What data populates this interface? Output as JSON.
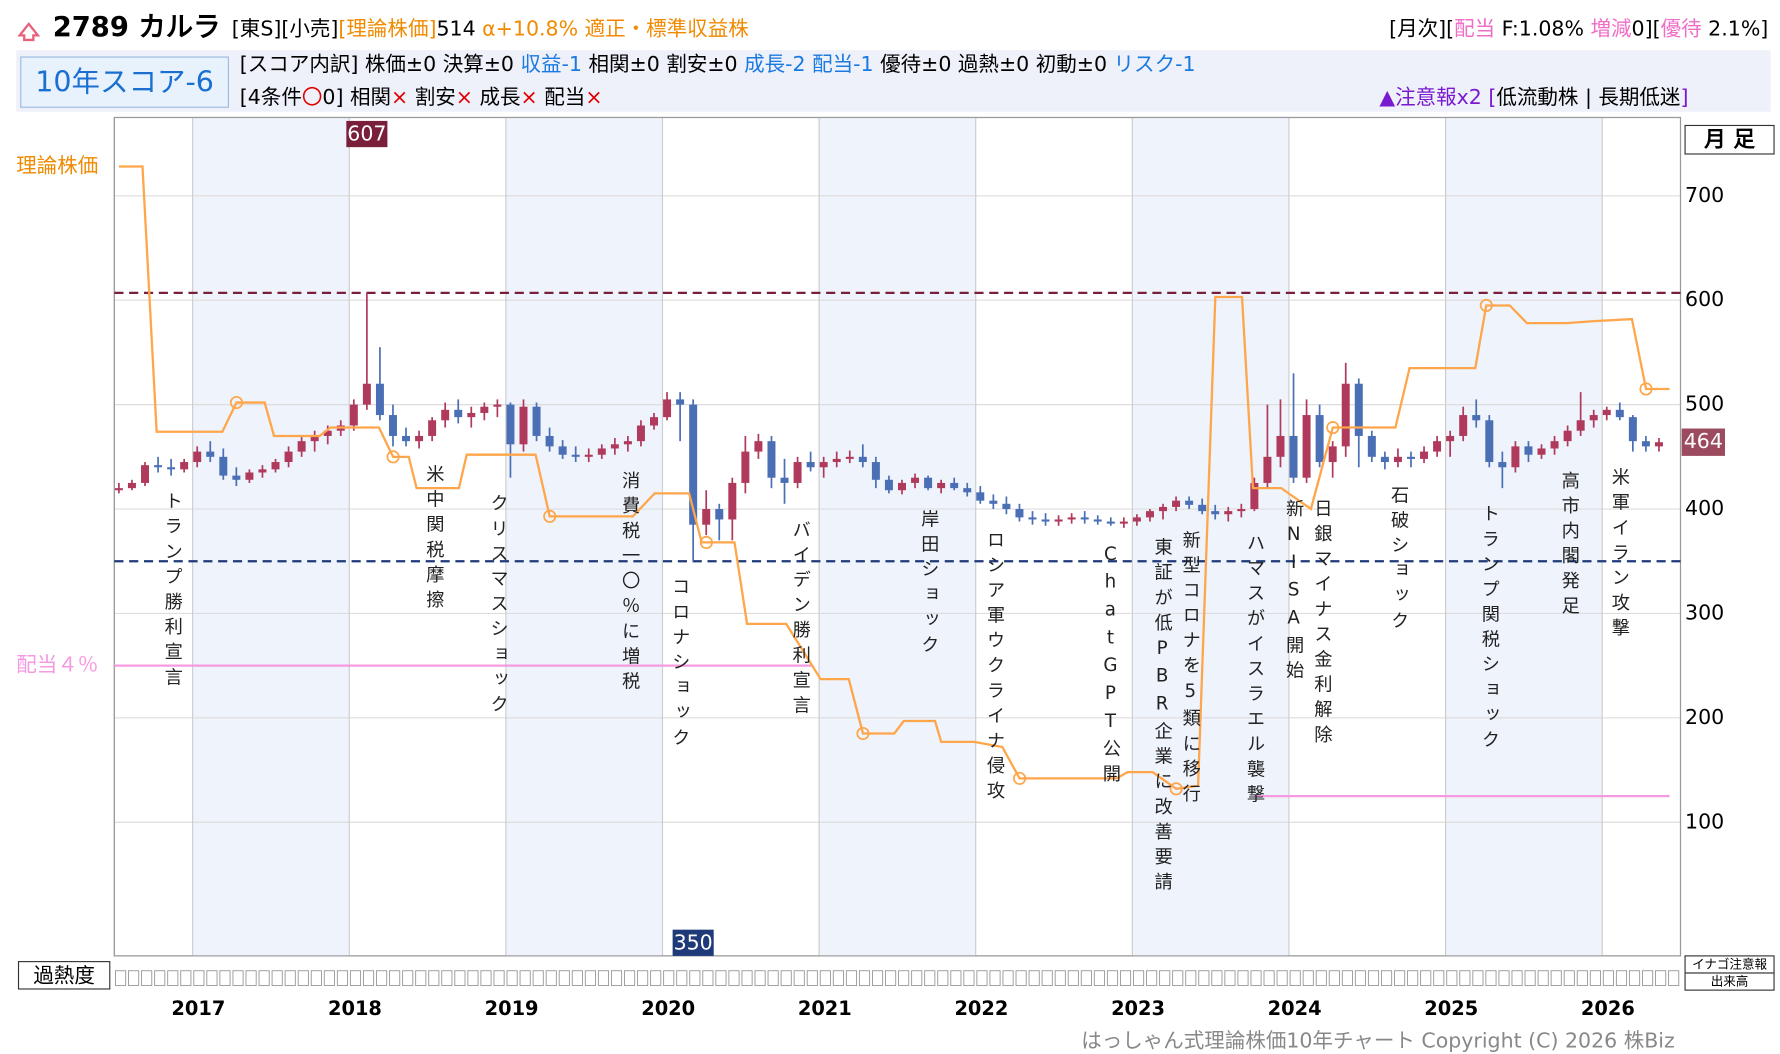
{
  "header": {
    "title": "2789 カルラ",
    "left": [
      {
        "text": "[東S][小売]",
        "color": "#000000"
      },
      {
        "text": "[理論株価]",
        "color": "#f08a00"
      },
      {
        "text": "514",
        "color": "#000000"
      },
      {
        "text": " α+10.8%",
        "color": "#f08a00"
      },
      {
        "text": " 適正・標準収益株",
        "color": "#f08a00"
      }
    ],
    "right": [
      {
        "text": "[月次][",
        "color": "#000000"
      },
      {
        "text": "配当",
        "color": "#f06ec8"
      },
      {
        "text": " F:1.08% ",
        "color": "#000000"
      },
      {
        "text": "増減",
        "color": "#f06ec8"
      },
      {
        "text": "0][",
        "color": "#000000"
      },
      {
        "text": "優待",
        "color": "#f06ec8"
      },
      {
        "text": " 2.1%]",
        "color": "#000000"
      }
    ],
    "score": "10年スコア-6",
    "breakdown": [
      {
        "text": "[スコア内訳] 株価±0 決算±0 ",
        "color": "#000000"
      },
      {
        "text": "収益-1",
        "color": "#1a7ae0"
      },
      {
        "text": " 相関±0 割安±0 ",
        "color": "#000000"
      },
      {
        "text": "成長-2 配当-1",
        "color": "#1a7ae0"
      },
      {
        "text": " 優待±0 過熱±0 初動±0 ",
        "color": "#000000"
      },
      {
        "text": "リスク-1",
        "color": "#1a7ae0"
      }
    ],
    "conditions": [
      {
        "text": "[4条件",
        "color": "#000000"
      },
      {
        "text": "〇",
        "color": "#e00000"
      },
      {
        "text": "0] 相関",
        "color": "#000000"
      },
      {
        "text": "×",
        "color": "#e00000"
      },
      {
        "text": " 割安",
        "color": "#000000"
      },
      {
        "text": "×",
        "color": "#e00000"
      },
      {
        "text": " 成長",
        "color": "#000000"
      },
      {
        "text": "×",
        "color": "#e00000"
      },
      {
        "text": " 配当",
        "color": "#000000"
      },
      {
        "text": "×",
        "color": "#e00000"
      }
    ],
    "warning": [
      {
        "text": "▲注意報x2 [",
        "color": "#7a1ad0"
      },
      {
        "text": "低流動株 | 長期低迷",
        "color": "#000000"
      },
      {
        "text": "]",
        "color": "#7a1ad0"
      }
    ]
  },
  "chart_data": {
    "type": "candlestick",
    "period": "月 足",
    "overheat_label": "過熱度",
    "inago_label": "イナゴ注意報",
    "volume_label": "出来高",
    "footer": "はっしゃん式理論株価10年チャート Copyright (C) 2026 株Biz",
    "xlim": [
      2016.5,
      2026.5
    ],
    "xticks": [
      2017,
      2018,
      2019,
      2020,
      2021,
      2022,
      2023,
      2024,
      2025,
      2026
    ],
    "ylim": [
      -28,
      775
    ],
    "yticks": [
      100,
      200,
      300,
      400,
      500,
      600,
      700
    ],
    "up_color": "#b03a5b",
    "down_color": "#4a6fb5",
    "ohlc": [
      [
        418,
        425,
        415,
        420
      ],
      [
        420,
        428,
        418,
        425
      ],
      [
        425,
        445,
        422,
        442
      ],
      [
        442,
        450,
        435,
        440
      ],
      [
        440,
        448,
        432,
        438
      ],
      [
        438,
        448,
        435,
        445
      ],
      [
        445,
        460,
        440,
        455
      ],
      [
        455,
        465,
        445,
        450
      ],
      [
        450,
        458,
        428,
        432
      ],
      [
        432,
        440,
        422,
        428
      ],
      [
        428,
        438,
        425,
        435
      ],
      [
        435,
        442,
        430,
        438
      ],
      [
        438,
        448,
        435,
        445
      ],
      [
        445,
        460,
        440,
        455
      ],
      [
        455,
        470,
        450,
        465
      ],
      [
        465,
        475,
        455,
        470
      ],
      [
        470,
        480,
        462,
        475
      ],
      [
        475,
        485,
        470,
        480
      ],
      [
        480,
        505,
        475,
        500
      ],
      [
        500,
        607,
        495,
        520
      ],
      [
        520,
        555,
        485,
        490
      ],
      [
        490,
        500,
        460,
        470
      ],
      [
        470,
        478,
        460,
        465
      ],
      [
        465,
        475,
        458,
        470
      ],
      [
        470,
        488,
        465,
        485
      ],
      [
        485,
        502,
        478,
        495
      ],
      [
        495,
        505,
        482,
        488
      ],
      [
        488,
        498,
        478,
        492
      ],
      [
        492,
        502,
        485,
        498
      ],
      [
        498,
        505,
        488,
        500
      ],
      [
        500,
        502,
        430,
        462
      ],
      [
        462,
        505,
        455,
        498
      ],
      [
        498,
        502,
        465,
        470
      ],
      [
        470,
        478,
        455,
        460
      ],
      [
        460,
        466,
        448,
        452
      ],
      [
        452,
        460,
        445,
        450
      ],
      [
        450,
        458,
        445,
        452
      ],
      [
        452,
        462,
        448,
        458
      ],
      [
        458,
        468,
        452,
        462
      ],
      [
        462,
        470,
        455,
        465
      ],
      [
        465,
        485,
        460,
        480
      ],
      [
        480,
        492,
        476,
        488
      ],
      [
        488,
        512,
        485,
        505
      ],
      [
        505,
        512,
        465,
        500
      ],
      [
        500,
        505,
        350,
        385
      ],
      [
        385,
        418,
        375,
        400
      ],
      [
        400,
        405,
        370,
        390
      ],
      [
        390,
        430,
        370,
        425
      ],
      [
        425,
        470,
        415,
        455
      ],
      [
        455,
        472,
        448,
        465
      ],
      [
        465,
        470,
        420,
        430
      ],
      [
        430,
        448,
        405,
        425
      ],
      [
        425,
        450,
        420,
        445
      ],
      [
        445,
        455,
        436,
        440
      ],
      [
        440,
        450,
        430,
        445
      ],
      [
        445,
        455,
        440,
        448
      ],
      [
        448,
        456,
        444,
        450
      ],
      [
        450,
        462,
        440,
        445
      ],
      [
        445,
        450,
        420,
        428
      ],
      [
        428,
        432,
        415,
        418
      ],
      [
        418,
        428,
        414,
        425
      ],
      [
        425,
        434,
        420,
        430
      ],
      [
        430,
        432,
        418,
        420
      ],
      [
        420,
        428,
        415,
        425
      ],
      [
        425,
        430,
        418,
        420
      ],
      [
        420,
        425,
        412,
        416
      ],
      [
        416,
        422,
        405,
        408
      ],
      [
        408,
        414,
        400,
        405
      ],
      [
        405,
        412,
        395,
        400
      ],
      [
        400,
        405,
        388,
        392
      ],
      [
        392,
        398,
        385,
        390
      ],
      [
        390,
        396,
        384,
        388
      ],
      [
        388,
        394,
        384,
        390
      ],
      [
        390,
        396,
        386,
        392
      ],
      [
        392,
        398,
        386,
        390
      ],
      [
        390,
        394,
        385,
        388
      ],
      [
        388,
        392,
        384,
        386
      ],
      [
        386,
        392,
        382,
        388
      ],
      [
        388,
        395,
        384,
        392
      ],
      [
        392,
        400,
        388,
        398
      ],
      [
        398,
        405,
        390,
        402
      ],
      [
        402,
        412,
        398,
        408
      ],
      [
        408,
        412,
        400,
        404
      ],
      [
        404,
        410,
        395,
        398
      ],
      [
        398,
        404,
        390,
        395
      ],
      [
        395,
        402,
        388,
        398
      ],
      [
        398,
        405,
        392,
        400
      ],
      [
        400,
        430,
        398,
        425
      ],
      [
        425,
        500,
        420,
        450
      ],
      [
        450,
        505,
        440,
        470
      ],
      [
        470,
        530,
        425,
        430
      ],
      [
        430,
        505,
        425,
        490
      ],
      [
        490,
        500,
        440,
        445
      ],
      [
        445,
        465,
        430,
        460
      ],
      [
        460,
        540,
        450,
        520
      ],
      [
        520,
        525,
        440,
        470
      ],
      [
        470,
        475,
        445,
        450
      ],
      [
        450,
        455,
        438,
        445
      ],
      [
        445,
        458,
        440,
        450
      ],
      [
        450,
        455,
        440,
        448
      ],
      [
        448,
        460,
        444,
        455
      ],
      [
        455,
        470,
        450,
        465
      ],
      [
        465,
        475,
        450,
        470
      ],
      [
        470,
        498,
        465,
        490
      ],
      [
        490,
        505,
        478,
        485
      ],
      [
        485,
        490,
        440,
        445
      ],
      [
        445,
        455,
        420,
        440
      ],
      [
        440,
        465,
        435,
        460
      ],
      [
        460,
        465,
        445,
        452
      ],
      [
        452,
        462,
        448,
        458
      ],
      [
        458,
        470,
        452,
        465
      ],
      [
        465,
        480,
        460,
        475
      ],
      [
        475,
        512,
        470,
        485
      ],
      [
        485,
        495,
        478,
        490
      ],
      [
        490,
        498,
        485,
        495
      ],
      [
        495,
        502,
        485,
        488
      ],
      [
        488,
        490,
        455,
        465
      ],
      [
        465,
        470,
        455,
        460
      ],
      [
        460,
        468,
        455,
        464
      ]
    ],
    "theory": {
      "label": "理論株価",
      "color": "#ffa54a",
      "x": [
        2016.53,
        2016.68,
        2016.77,
        2017.19,
        2017.28,
        2017.46,
        2017.52,
        2017.81,
        2017.88,
        2018.19,
        2018.28,
        2018.38,
        2018.43,
        2018.7,
        2018.75,
        2019.19,
        2019.28,
        2019.81,
        2019.95,
        2020.17,
        2020.25,
        2020.46,
        2020.54,
        2020.79,
        2021.01,
        2021.19,
        2021.28,
        2021.48,
        2021.54,
        2021.74,
        2021.78,
        2021.99,
        2022.17,
        2022.28,
        2022.9,
        2022.97,
        2023.13,
        2023.28,
        2023.42,
        2023.53,
        2023.7,
        2023.77,
        2023.95,
        2024.14,
        2024.28,
        2024.68,
        2024.77,
        2025.19,
        2025.26,
        2025.41,
        2025.52,
        2025.77,
        2025.95,
        2026.19,
        2026.28,
        2026.43
      ],
      "values": [
        728,
        728,
        474,
        474,
        502,
        502,
        470,
        470,
        478,
        478,
        450,
        450,
        420,
        420,
        452,
        452,
        393,
        393,
        415,
        415,
        368,
        368,
        290,
        290,
        237,
        237,
        185,
        185,
        197,
        197,
        177,
        177,
        172,
        142,
        142,
        148,
        148,
        132,
        135,
        603,
        603,
        420,
        420,
        400,
        478,
        478,
        535,
        535,
        595,
        595,
        578,
        578,
        580,
        582,
        515,
        515
      ],
      "markers": {
        "x": [
          2017.28,
          2018.28,
          2019.28,
          2020.28,
          2021.28,
          2022.28,
          2023.28,
          2024.28,
          2025.26,
          2026.28
        ],
        "values": [
          502,
          450,
          393,
          368,
          185,
          142,
          132,
          478,
          595,
          515
        ]
      }
    },
    "high_line": {
      "value": 607,
      "color": "#7a1f3a"
    },
    "low_line": {
      "value": 350,
      "color": "#1e3a78"
    },
    "last_price": {
      "value": 464,
      "color": "#9c4a5e"
    },
    "dividend_label": "配当４％",
    "dividend_color": "#f59ae0",
    "dividend_lines": [
      {
        "value": 250,
        "x": [
          2016.5,
          2020.95
        ]
      },
      {
        "value": 125,
        "x": [
          2023.78,
          2026.43
        ]
      }
    ],
    "events": [
      {
        "label": "トランプ勝利宣言",
        "x": 2016.87
      },
      {
        "label": "米中関税摩擦",
        "x": 2018.54
      },
      {
        "label": "クリスマスショック",
        "x": 2018.95
      },
      {
        "label": "消費税一〇％に増税",
        "x": 2019.79
      },
      {
        "label": "コロナショック",
        "x": 2020.11
      },
      {
        "label": "バイデン勝利宣言",
        "x": 2020.88
      },
      {
        "label": "岸田ショック",
        "x": 2021.7
      },
      {
        "label": "ロシア軍ウクライナ侵攻",
        "x": 2022.12
      },
      {
        "label": "ChatGPT公開",
        "x": 2022.86
      },
      {
        "label": "東証が低PBR企業に改善要請",
        "x": 2023.19
      },
      {
        "label": "新型コロナを5類に移行",
        "x": 2023.37
      },
      {
        "label": "ハマスがイスラエル襲撃",
        "x": 2023.78
      },
      {
        "label": "新NISA開始",
        "x": 2024.03
      },
      {
        "label": "日銀マイナス金利解除",
        "x": 2024.21
      },
      {
        "label": "石破ショック",
        "x": 2024.7
      },
      {
        "label": "トランプ関税ショック",
        "x": 2025.28
      },
      {
        "label": "高市内閣発足",
        "x": 2025.79
      },
      {
        "label": "米軍イラン攻撃",
        "x": 2026.11
      }
    ]
  }
}
